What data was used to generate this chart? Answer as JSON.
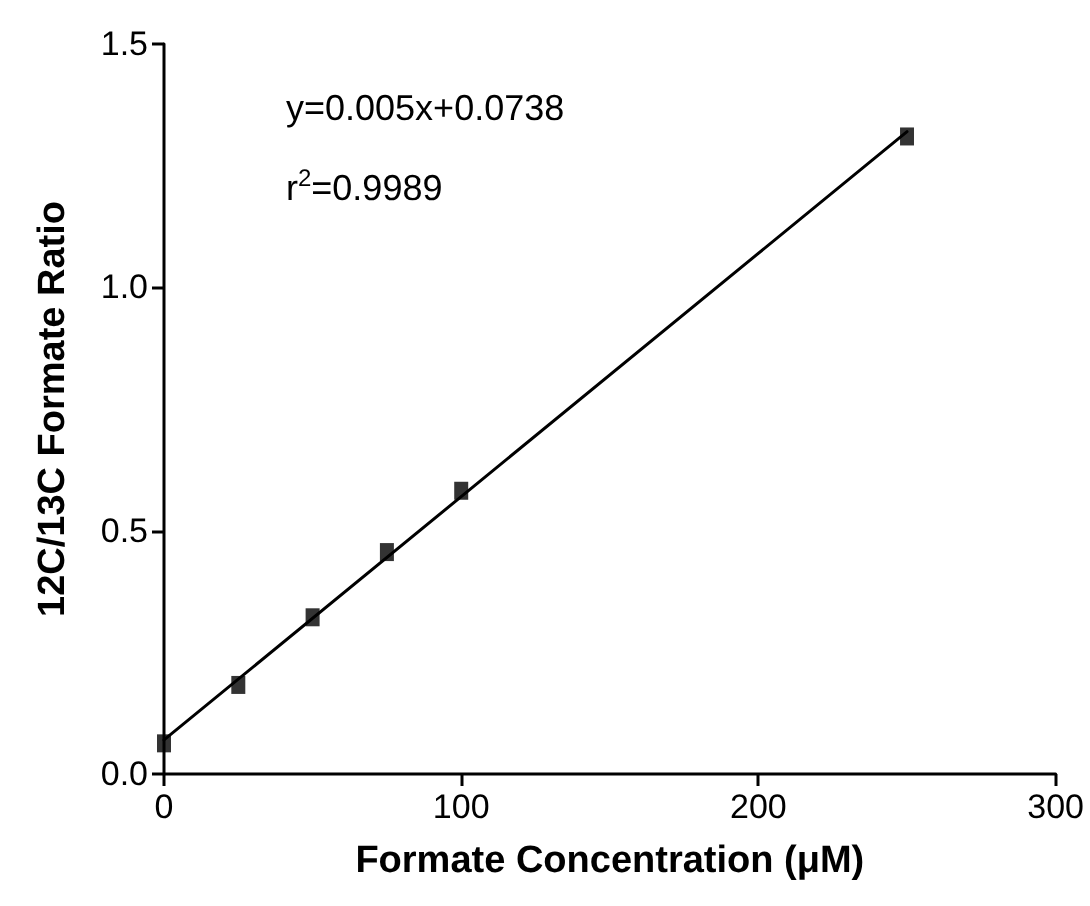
{
  "chart_data": {
    "type": "scatter",
    "xlabel": "Formate Concentration (μM)",
    "ylabel": "12C/13C Formate Ratio",
    "annotations": [
      "y=0.005x+0.0738",
      "r$^{2}$=0.9989"
    ],
    "series": [
      {
        "color": "#000000",
        "marker": "square",
        "x": [
          0,
          25,
          50,
          75,
          100,
          250
        ],
        "values": [
          0.063,
          0.183,
          0.322,
          0.456,
          0.582,
          1.31
        ]
      },
      {
        "type": "line",
        "color": "#000000",
        "marker": "none",
        "line_style": "solid",
        "x": [
          0,
          250
        ],
        "values": [
          0.07,
          1.32
        ]
      }
    ],
    "xlim": [
      0,
      300
    ],
    "xticks": [
      0,
      100,
      200,
      300
    ],
    "ylim": [
      0,
      1.5
    ],
    "yticks": [
      {
        "value": 0,
        "label": "0.0"
      },
      {
        "value": 0.5,
        "label": "0.5"
      },
      {
        "value": 1.0,
        "label": "1.0"
      },
      {
        "value": 1.5,
        "label": "1.5"
      }
    ],
    "grid": false
  }
}
